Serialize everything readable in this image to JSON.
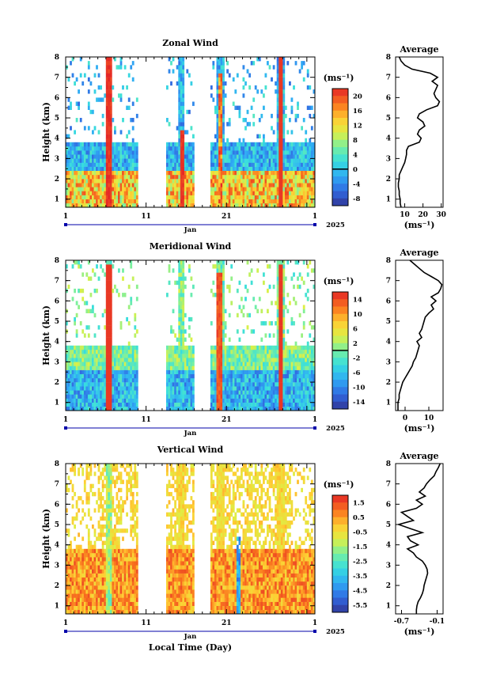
{
  "page": {
    "background": "#ffffff"
  },
  "chart_data": [
    {
      "type": "heatmap",
      "title": "Zonal Wind",
      "ylabel": "Height (km)",
      "xlabel": "",
      "unit_label": "(ms⁻¹)",
      "year_label": "2025",
      "month_label": "Jan",
      "xlim": [
        1,
        32
      ],
      "ylim": [
        0.6,
        8
      ],
      "x_ticks": [
        "1",
        "11",
        "21",
        "1"
      ],
      "y_ticks": [
        "1",
        "2",
        "3",
        "4",
        "5",
        "6",
        "7",
        "8"
      ],
      "colorbar": {
        "ticks": [
          "20",
          "16",
          "12",
          "8",
          "4",
          "0",
          "-4",
          "-8"
        ],
        "range": [
          -10,
          22
        ],
        "zero_line": 0
      },
      "observation_days": [
        [
          1,
          10
        ],
        [
          13.5,
          17
        ],
        [
          19,
          32
        ]
      ],
      "profile": {
        "title": "Average",
        "xlabel": "(ms⁻¹)",
        "x_ticks": [
          "10",
          "20",
          "30"
        ],
        "xlim": [
          5,
          31
        ],
        "heights": [
          0.6,
          0.8,
          1.0,
          1.2,
          1.4,
          1.6,
          1.8,
          2.0,
          2.2,
          2.4,
          2.6,
          2.8,
          3.0,
          3.2,
          3.4,
          3.6,
          3.8,
          4.0,
          4.2,
          4.4,
          4.6,
          4.8,
          5.0,
          5.2,
          5.4,
          5.6,
          5.8,
          6.0,
          6.2,
          6.4,
          6.6,
          6.8,
          7.0,
          7.2,
          7.4,
          7.6,
          7.8,
          8.0
        ],
        "values": [
          8,
          7.5,
          7.5,
          7,
          7,
          6.5,
          6.5,
          7,
          7,
          8,
          9,
          10,
          10.5,
          11,
          11,
          12,
          18,
          19,
          17,
          18,
          21,
          20,
          17,
          18,
          22,
          28,
          29,
          27,
          26,
          27,
          28,
          25,
          28,
          24,
          14,
          10,
          8,
          7
        ]
      }
    },
    {
      "type": "heatmap",
      "title": "Meridional Wind",
      "ylabel": "Height (km)",
      "xlabel": "",
      "unit_label": "(ms⁻¹)",
      "year_label": "2025",
      "month_label": "Jan",
      "xlim": [
        1,
        32
      ],
      "ylim": [
        0.6,
        8
      ],
      "x_ticks": [
        "1",
        "11",
        "21",
        "1"
      ],
      "y_ticks": [
        "1",
        "2",
        "3",
        "4",
        "5",
        "6",
        "7",
        "8"
      ],
      "colorbar": {
        "ticks": [
          "14",
          "10",
          "6",
          "2",
          "-2",
          "-6",
          "-10",
          "-14"
        ],
        "range": [
          -16,
          16
        ],
        "zero_line": 0
      },
      "observation_days": [
        [
          1,
          10
        ],
        [
          13.5,
          17
        ],
        [
          19,
          32
        ]
      ],
      "profile": {
        "title": "Average",
        "xlabel": "(ms⁻¹)",
        "x_ticks": [
          "0",
          "10"
        ],
        "xlim": [
          -4,
          16
        ],
        "heights": [
          0.6,
          0.8,
          1.0,
          1.2,
          1.4,
          1.6,
          1.8,
          2.0,
          2.2,
          2.4,
          2.6,
          2.8,
          3.0,
          3.2,
          3.4,
          3.6,
          3.8,
          4.0,
          4.2,
          4.4,
          4.6,
          4.8,
          5.0,
          5.2,
          5.4,
          5.6,
          5.8,
          6.0,
          6.2,
          6.4,
          6.6,
          6.8,
          7.0,
          7.2,
          7.4,
          7.6,
          7.8,
          8.0
        ],
        "values": [
          -3,
          -3,
          -3,
          -2.5,
          -2.5,
          -2,
          -1.5,
          -1,
          0,
          1,
          2,
          3,
          3.5,
          4.5,
          5,
          5.5,
          6,
          5,
          7,
          6,
          7,
          7.5,
          8,
          8.5,
          10,
          12,
          11,
          13,
          11,
          14,
          15,
          15.5,
          14,
          11,
          8,
          6,
          4,
          2
        ]
      }
    },
    {
      "type": "heatmap",
      "title": "Vertical Wind",
      "ylabel": "Height (km)",
      "xlabel": "Local Time (Day)",
      "unit_label": "(ms⁻¹)",
      "year_label": "2025",
      "month_label": "Jan",
      "xlim": [
        1,
        32
      ],
      "ylim": [
        0.6,
        8
      ],
      "x_ticks": [
        "1",
        "11",
        "21",
        "1"
      ],
      "y_ticks": [
        "1",
        "2",
        "3",
        "4",
        "5",
        "6",
        "7",
        "8"
      ],
      "colorbar": {
        "ticks": [
          "1.5",
          "0.5",
          "-0.5",
          "-1.5",
          "-2.5",
          "-3.5",
          "-4.5",
          "-5.5"
        ],
        "range": [
          -6,
          2
        ]
      },
      "observation_days": [
        [
          1,
          10
        ],
        [
          13.5,
          17
        ],
        [
          19,
          32
        ]
      ],
      "profile": {
        "title": "Average",
        "xlabel": "(ms⁻¹)",
        "x_ticks": [
          "-0.7",
          "-0.1"
        ],
        "xlim": [
          -0.8,
          0.0
        ],
        "heights": [
          0.6,
          0.8,
          1.0,
          1.2,
          1.4,
          1.6,
          1.8,
          2.0,
          2.2,
          2.4,
          2.6,
          2.8,
          3.0,
          3.2,
          3.4,
          3.6,
          3.8,
          4.0,
          4.2,
          4.4,
          4.6,
          4.8,
          5.0,
          5.2,
          5.4,
          5.6,
          5.8,
          6.0,
          6.2,
          6.4,
          6.6,
          6.8,
          7.0,
          7.2,
          7.4,
          7.6,
          7.8,
          8.0
        ],
        "values": [
          -0.45,
          -0.45,
          -0.44,
          -0.42,
          -0.38,
          -0.35,
          -0.33,
          -0.32,
          -0.3,
          -0.28,
          -0.26,
          -0.27,
          -0.3,
          -0.35,
          -0.45,
          -0.5,
          -0.6,
          -0.42,
          -0.55,
          -0.6,
          -0.35,
          -0.55,
          -0.75,
          -0.5,
          -0.6,
          -0.7,
          -0.45,
          -0.35,
          -0.45,
          -0.3,
          -0.4,
          -0.32,
          -0.28,
          -0.22,
          -0.15,
          -0.12,
          -0.08,
          -0.05
        ]
      }
    }
  ]
}
